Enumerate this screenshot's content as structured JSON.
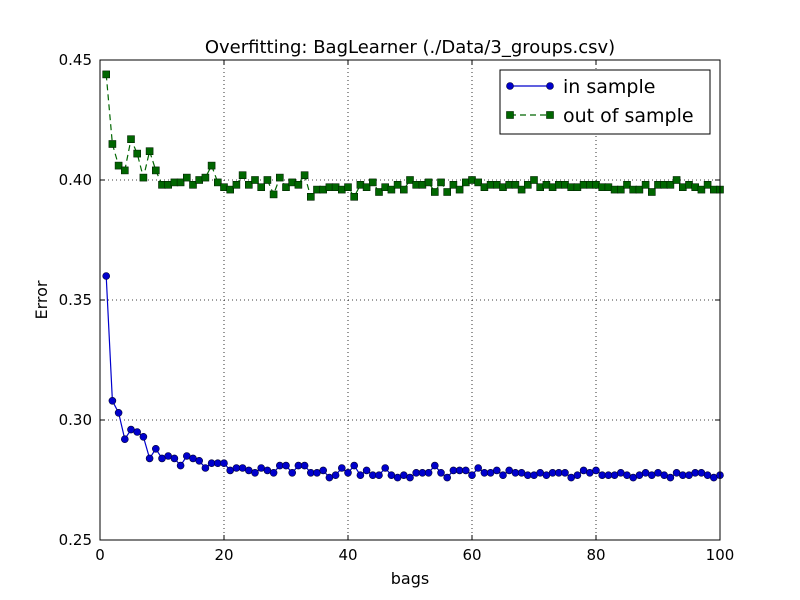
{
  "chart_data": {
    "type": "line",
    "title": "Overfitting: BagLearner (./Data/3_groups.csv)",
    "xlabel": "bags",
    "ylabel": "Error",
    "xlim": [
      0,
      100
    ],
    "ylim": [
      0.25,
      0.45
    ],
    "x_ticks": [
      "0",
      "20",
      "40",
      "60",
      "80",
      "100"
    ],
    "y_ticks": [
      "0.25",
      "0.30",
      "0.35",
      "0.40",
      "0.45"
    ],
    "grid": true,
    "legend_position": "top-right",
    "series": [
      {
        "name": "in sample",
        "color": "#0000cc",
        "marker": "circle",
        "line_style": "solid",
        "x": [
          1,
          2,
          3,
          4,
          5,
          6,
          7,
          8,
          9,
          10,
          11,
          12,
          13,
          14,
          15,
          16,
          17,
          18,
          19,
          20,
          21,
          22,
          23,
          24,
          25,
          26,
          27,
          28,
          29,
          30,
          31,
          32,
          33,
          34,
          35,
          36,
          37,
          38,
          39,
          40,
          41,
          42,
          43,
          44,
          45,
          46,
          47,
          48,
          49,
          50,
          51,
          52,
          53,
          54,
          55,
          56,
          57,
          58,
          59,
          60,
          61,
          62,
          63,
          64,
          65,
          66,
          67,
          68,
          69,
          70,
          71,
          72,
          73,
          74,
          75,
          76,
          77,
          78,
          79,
          80,
          81,
          82,
          83,
          84,
          85,
          86,
          87,
          88,
          89,
          90,
          91,
          92,
          93,
          94,
          95,
          96,
          97,
          98,
          99,
          100
        ],
        "values": [
          0.36,
          0.308,
          0.303,
          0.292,
          0.296,
          0.295,
          0.293,
          0.284,
          0.288,
          0.284,
          0.285,
          0.284,
          0.281,
          0.285,
          0.284,
          0.283,
          0.28,
          0.282,
          0.282,
          0.282,
          0.279,
          0.28,
          0.28,
          0.279,
          0.278,
          0.28,
          0.279,
          0.278,
          0.281,
          0.281,
          0.278,
          0.281,
          0.281,
          0.278,
          0.278,
          0.279,
          0.276,
          0.277,
          0.28,
          0.278,
          0.281,
          0.277,
          0.279,
          0.277,
          0.277,
          0.28,
          0.277,
          0.276,
          0.277,
          0.276,
          0.278,
          0.278,
          0.278,
          0.281,
          0.278,
          0.276,
          0.279,
          0.279,
          0.279,
          0.277,
          0.28,
          0.278,
          0.278,
          0.279,
          0.277,
          0.279,
          0.278,
          0.278,
          0.277,
          0.277,
          0.278,
          0.277,
          0.278,
          0.278,
          0.278,
          0.276,
          0.277,
          0.279,
          0.278,
          0.279,
          0.277,
          0.277,
          0.277,
          0.278,
          0.277,
          0.276,
          0.277,
          0.278,
          0.277,
          0.278,
          0.277,
          0.276,
          0.278,
          0.277,
          0.277,
          0.278,
          0.278,
          0.277,
          0.276,
          0.277
        ]
      },
      {
        "name": "out of sample",
        "color": "#006600",
        "marker": "square",
        "line_style": "dashed",
        "x": [
          1,
          2,
          3,
          4,
          5,
          6,
          7,
          8,
          9,
          10,
          11,
          12,
          13,
          14,
          15,
          16,
          17,
          18,
          19,
          20,
          21,
          22,
          23,
          24,
          25,
          26,
          27,
          28,
          29,
          30,
          31,
          32,
          33,
          34,
          35,
          36,
          37,
          38,
          39,
          40,
          41,
          42,
          43,
          44,
          45,
          46,
          47,
          48,
          49,
          50,
          51,
          52,
          53,
          54,
          55,
          56,
          57,
          58,
          59,
          60,
          61,
          62,
          63,
          64,
          65,
          66,
          67,
          68,
          69,
          70,
          71,
          72,
          73,
          74,
          75,
          76,
          77,
          78,
          79,
          80,
          81,
          82,
          83,
          84,
          85,
          86,
          87,
          88,
          89,
          90,
          91,
          92,
          93,
          94,
          95,
          96,
          97,
          98,
          99,
          100
        ],
        "values": [
          0.444,
          0.415,
          0.406,
          0.404,
          0.417,
          0.411,
          0.401,
          0.412,
          0.404,
          0.398,
          0.398,
          0.399,
          0.399,
          0.401,
          0.398,
          0.4,
          0.401,
          0.406,
          0.399,
          0.397,
          0.396,
          0.398,
          0.402,
          0.398,
          0.4,
          0.397,
          0.4,
          0.394,
          0.401,
          0.397,
          0.399,
          0.398,
          0.402,
          0.393,
          0.396,
          0.396,
          0.397,
          0.397,
          0.396,
          0.397,
          0.393,
          0.398,
          0.397,
          0.399,
          0.395,
          0.397,
          0.396,
          0.398,
          0.396,
          0.4,
          0.398,
          0.398,
          0.399,
          0.395,
          0.399,
          0.395,
          0.398,
          0.396,
          0.399,
          0.4,
          0.399,
          0.397,
          0.398,
          0.398,
          0.397,
          0.398,
          0.398,
          0.396,
          0.398,
          0.4,
          0.397,
          0.398,
          0.397,
          0.398,
          0.398,
          0.397,
          0.397,
          0.398,
          0.398,
          0.398,
          0.397,
          0.397,
          0.396,
          0.396,
          0.398,
          0.396,
          0.396,
          0.398,
          0.395,
          0.398,
          0.398,
          0.398,
          0.4,
          0.397,
          0.398,
          0.397,
          0.396,
          0.398,
          0.396,
          0.396
        ]
      }
    ]
  }
}
